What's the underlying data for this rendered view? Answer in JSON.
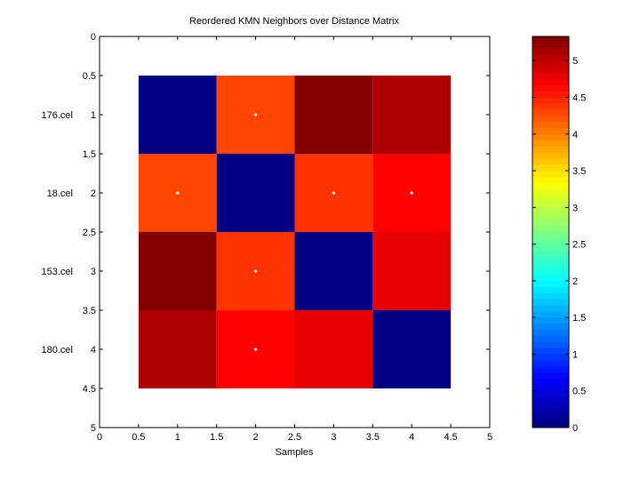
{
  "chart_data": {
    "type": "heatmap",
    "title": "Reordered KMN Neighbors over Distance Matrix",
    "xlabel": "Samples",
    "ylabel": "",
    "xlim": [
      0,
      5
    ],
    "ylim": [
      0,
      5
    ],
    "x_ticks": [
      "0",
      "0.5",
      "1",
      "1.5",
      "2",
      "2.5",
      "3",
      "3.5",
      "4",
      "4.5",
      "5"
    ],
    "y_ticks": [
      "0",
      "0.5",
      "1",
      "1.5",
      "2",
      "2.5",
      "3",
      "3.5",
      "4",
      "4.5",
      "5"
    ],
    "row_labels": [
      "176.cel",
      "18.cel",
      "153.cel",
      "180.cel"
    ],
    "values": [
      [
        0,
        4.3,
        5.33,
        5.1
      ],
      [
        4.3,
        0,
        4.4,
        4.66
      ],
      [
        5.33,
        4.4,
        0,
        4.8
      ],
      [
        5.1,
        4.66,
        4.8,
        0
      ]
    ],
    "neighbor_markers": [
      [
        2,
        1
      ],
      [
        1,
        2
      ],
      [
        3,
        2
      ],
      [
        4,
        2
      ],
      [
        2,
        3
      ],
      [
        2,
        4
      ]
    ],
    "colorbar": {
      "min": 0,
      "max": 5.33,
      "colormap": "jet",
      "ticks": [
        "0",
        "0.5",
        "1",
        "1.5",
        "2",
        "2.5",
        "3",
        "3.5",
        "4",
        "4.5",
        "5"
      ]
    },
    "marker_color": "#ffffff"
  }
}
